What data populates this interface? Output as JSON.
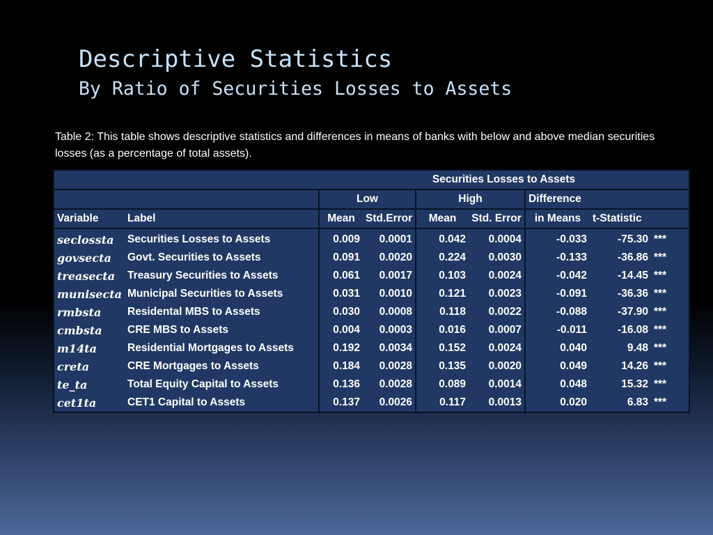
{
  "slide": {
    "title": "Descriptive Statistics",
    "subtitle": "By Ratio of Securities Losses to Assets",
    "caption": "Table 2: This table shows descriptive statistics and differences in means of banks with below and above median securities losses (as a percentage of total assets)."
  },
  "table": {
    "group_header": "Securities Losses to Assets",
    "low_label": "Low",
    "high_label": "High",
    "difference_label": "Difference",
    "columns": {
      "variable": "Variable",
      "label": "Label",
      "low_mean": "Mean",
      "low_se": "Std.Error",
      "high_mean": "Mean",
      "high_se": "Std. Error",
      "diff": "in Means",
      "tstat": "t-Statistic"
    },
    "rows": [
      {
        "variable": "seclossta",
        "label": "Securities Losses to Assets",
        "low_mean": "0.009",
        "low_se": "0.0001",
        "high_mean": "0.042",
        "high_se": "0.0004",
        "diff": "-0.033",
        "tstat": "-75.30",
        "sig": "***"
      },
      {
        "variable": "govsecta",
        "label": "Govt. Securities to Assets",
        "low_mean": "0.091",
        "low_se": "0.0020",
        "high_mean": "0.224",
        "high_se": "0.0030",
        "diff": "-0.133",
        "tstat": "-36.86",
        "sig": "***"
      },
      {
        "variable": "treasecta",
        "label": "Treasury Securities to Assets",
        "low_mean": "0.061",
        "low_se": "0.0017",
        "high_mean": "0.103",
        "high_se": "0.0024",
        "diff": "-0.042",
        "tstat": "-14.45",
        "sig": "***"
      },
      {
        "variable": "munisecta",
        "label": "Municipal Securities to Assets",
        "low_mean": "0.031",
        "low_se": "0.0010",
        "high_mean": "0.121",
        "high_se": "0.0023",
        "diff": "-0.091",
        "tstat": "-36.36",
        "sig": "***"
      },
      {
        "variable": "rmbsta",
        "label": "Residental MBS to Assets",
        "low_mean": "0.030",
        "low_se": "0.0008",
        "high_mean": "0.118",
        "high_se": "0.0022",
        "diff": "-0.088",
        "tstat": "-37.90",
        "sig": "***"
      },
      {
        "variable": "cmbsta",
        "label": "CRE MBS to Assets",
        "low_mean": "0.004",
        "low_se": "0.0003",
        "high_mean": "0.016",
        "high_se": "0.0007",
        "diff": "-0.011",
        "tstat": "-16.08",
        "sig": "***"
      },
      {
        "variable": "m14ta",
        "label": "Residential Mortgages to Assets",
        "low_mean": "0.192",
        "low_se": "0.0034",
        "high_mean": "0.152",
        "high_se": "0.0024",
        "diff": "0.040",
        "tstat": "9.48",
        "sig": "***"
      },
      {
        "variable": "creta",
        "label": "CRE Mortgages to Assets",
        "low_mean": "0.184",
        "low_se": "0.0028",
        "high_mean": "0.135",
        "high_se": "0.0020",
        "diff": "0.049",
        "tstat": "14.26",
        "sig": "***"
      },
      {
        "variable": "te_ta",
        "label": "Total Equity Capital to Assets",
        "low_mean": "0.136",
        "low_se": "0.0028",
        "high_mean": "0.089",
        "high_se": "0.0014",
        "diff": "0.048",
        "tstat": "15.32",
        "sig": "***"
      },
      {
        "variable": "cet1ta",
        "label": "CET1 Capital to Assets",
        "low_mean": "0.137",
        "low_se": "0.0026",
        "high_mean": "0.117",
        "high_se": "0.0013",
        "diff": "0.020",
        "tstat": "6.83",
        "sig": "***"
      }
    ]
  }
}
